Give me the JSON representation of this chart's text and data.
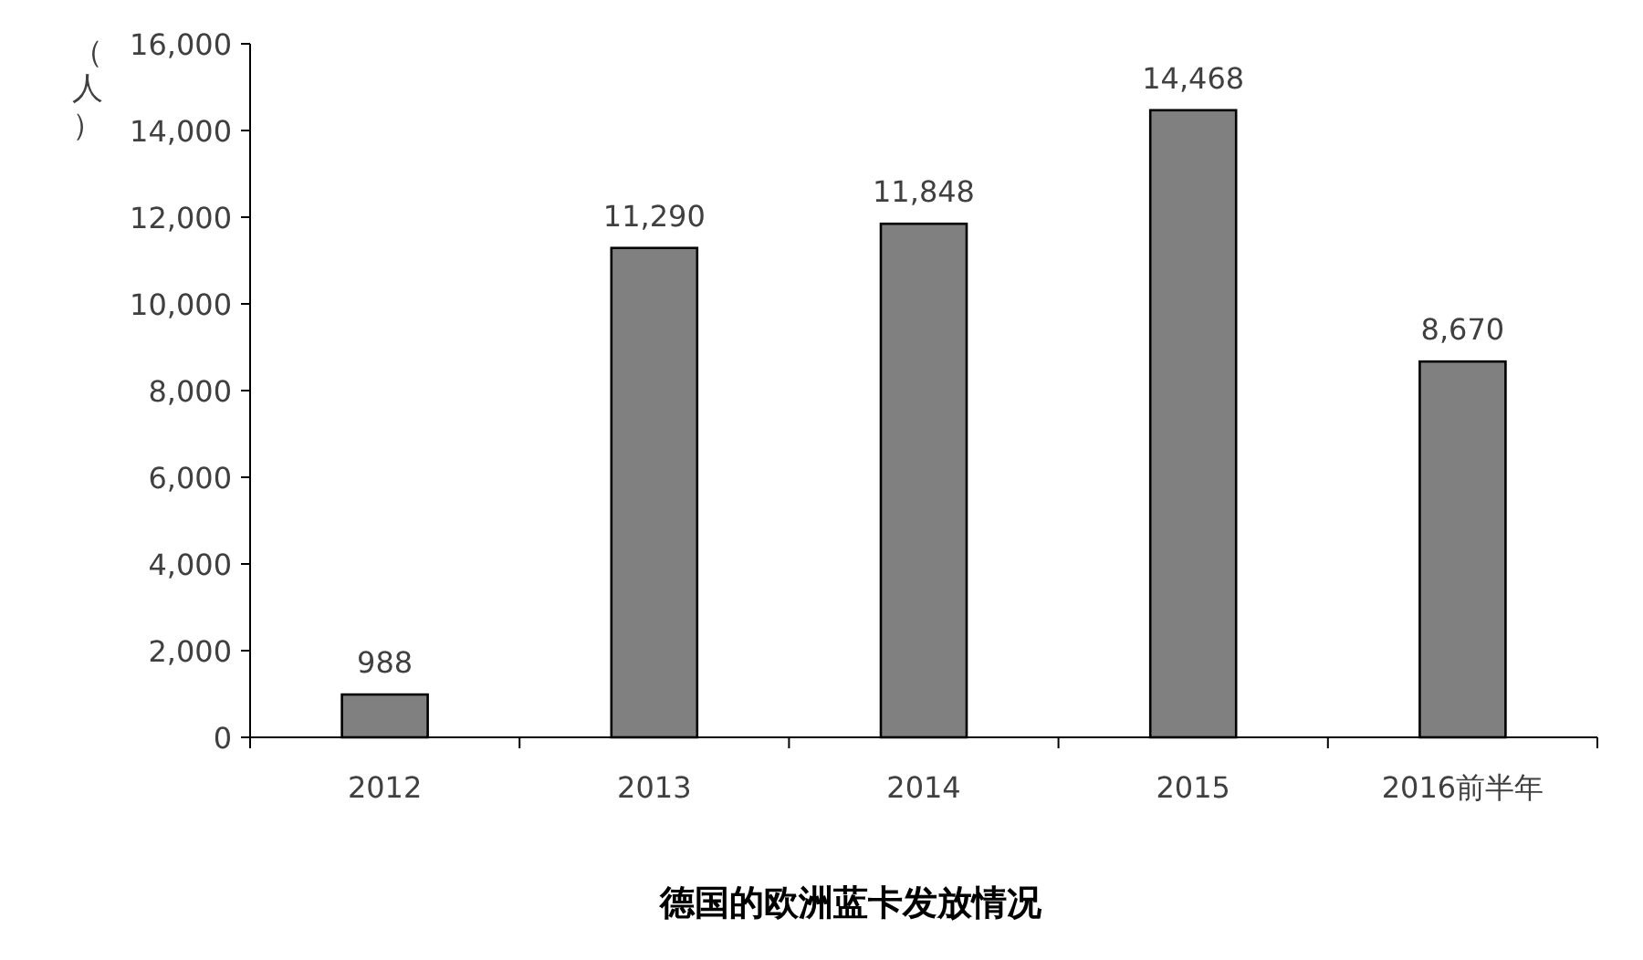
{
  "chart_data": {
    "type": "bar",
    "title": "德国的欧洲蓝卡发放情况",
    "ylabel": "（人）",
    "categories": [
      "2012",
      "2013",
      "2014",
      "2015",
      "2016前半年"
    ],
    "values": [
      988,
      11290,
      11848,
      14468,
      8670
    ],
    "value_labels": [
      "988",
      "11,290",
      "11,848",
      "14,468",
      "8,670"
    ],
    "color": "#808080",
    "ylim": [
      0,
      16000
    ],
    "yticks": [
      {
        "value": 0,
        "label": "0"
      },
      {
        "value": 2000,
        "label": "2,000"
      },
      {
        "value": 4000,
        "label": "4,000"
      },
      {
        "value": 6000,
        "label": "6,000"
      },
      {
        "value": 8000,
        "label": "8,000"
      },
      {
        "value": 10000,
        "label": "10,000"
      },
      {
        "value": 12000,
        "label": "12,000"
      },
      {
        "value": 14000,
        "label": "14,000"
      },
      {
        "value": 16000,
        "label": "16,000"
      }
    ]
  }
}
